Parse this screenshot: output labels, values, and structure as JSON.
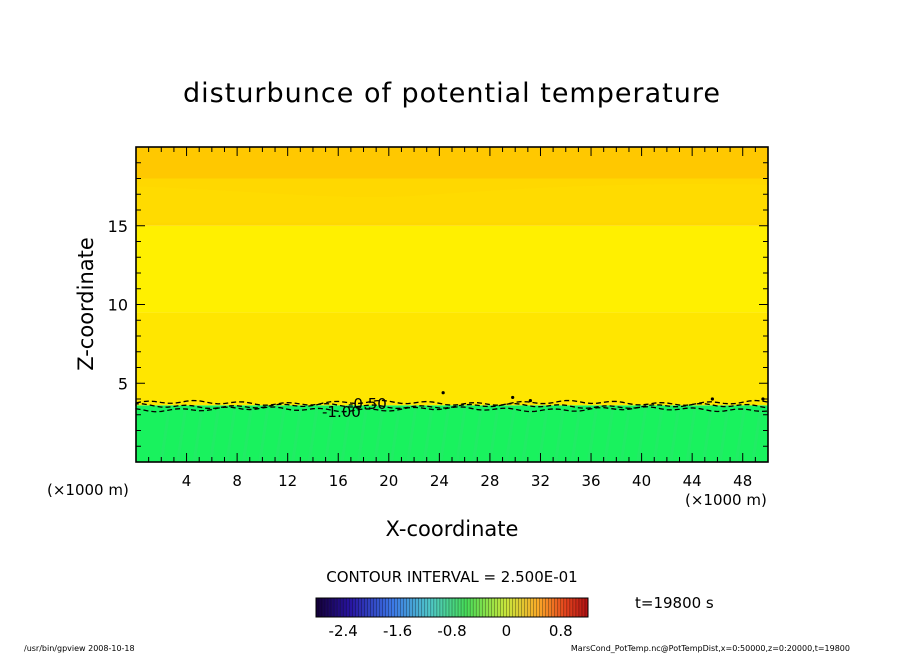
{
  "chart_data": {
    "type": "heatmap",
    "title": "disturbunce of potential temperature",
    "xlabel": "X-coordinate",
    "ylabel": "Z-coordinate",
    "x_unit": "(×1000 m)",
    "y_unit": "(×1000 m)",
    "xlim": [
      0,
      50
    ],
    "ylim": [
      0,
      20
    ],
    "x_ticks": [
      4,
      8,
      12,
      16,
      20,
      24,
      28,
      32,
      36,
      40,
      44,
      48
    ],
    "y_ticks": [
      5,
      10,
      15
    ],
    "contour_labels": [
      "-0.50",
      "-1.00"
    ],
    "contour_interval_text": "CONTOUR INTERVAL = 2.500E-01",
    "time_text": "t=19800 s",
    "colorbar": {
      "range": [
        -2.8,
        1.2
      ],
      "ticks": [
        "-2.4",
        "-1.6",
        "-0.8",
        "0",
        "0.8"
      ],
      "tick_values": [
        -2.4,
        -1.6,
        -0.8,
        0,
        0.8
      ]
    },
    "layers": [
      {
        "z_from": 0,
        "z_to": 3.6,
        "color": "#19f25e"
      },
      {
        "z_from": 3.6,
        "z_to": 9.5,
        "color": "#ffe600"
      },
      {
        "z_from": 9.5,
        "z_to": 15,
        "color": "#fff000"
      },
      {
        "z_from": 15,
        "z_to": 18,
        "color": "#ffd800"
      },
      {
        "z_from": 18,
        "z_to": 20,
        "color": "#ffc800"
      }
    ]
  },
  "footer": {
    "left": "/usr/bin/gpview   2008-10-18",
    "right": "MarsCond_PotTemp.nc@PotTempDist,x=0:50000,z=0:20000,t=19800"
  }
}
